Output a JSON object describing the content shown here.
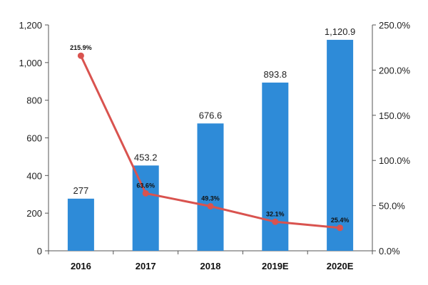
{
  "chart_data": {
    "type": "bar",
    "categories": [
      "2016",
      "2017",
      "2018",
      "2019E",
      "2020E"
    ],
    "series": [
      {
        "type": "bar",
        "axis": "left",
        "color": "#2e8bd8",
        "values": [
          277,
          453.2,
          676.6,
          893.8,
          1120.9
        ],
        "labels": [
          "277",
          "453.2",
          "676.6",
          "893.8",
          "1,120.9"
        ]
      },
      {
        "type": "line",
        "axis": "right",
        "color": "#d9534f",
        "values": [
          215.9,
          63.6,
          49.3,
          32.1,
          25.4
        ],
        "labels": [
          "215.9%",
          "63.6%",
          "49.3%",
          "32.1%",
          "25.4%"
        ]
      }
    ],
    "y_left": {
      "ylim": [
        0,
        1200
      ],
      "ticks": [
        0,
        200,
        400,
        600,
        800,
        1000,
        1200
      ],
      "tick_labels": [
        "0",
        "200",
        "400",
        "600",
        "800",
        "1,000",
        "1,200"
      ]
    },
    "y_right": {
      "ylim": [
        0,
        250
      ],
      "ticks": [
        0,
        50,
        100,
        150,
        200,
        250
      ],
      "tick_labels": [
        "0.0%",
        "50.0%",
        "100.0%",
        "150.0%",
        "200.0%",
        "250.0%"
      ]
    },
    "grid": false,
    "legend": "none"
  }
}
